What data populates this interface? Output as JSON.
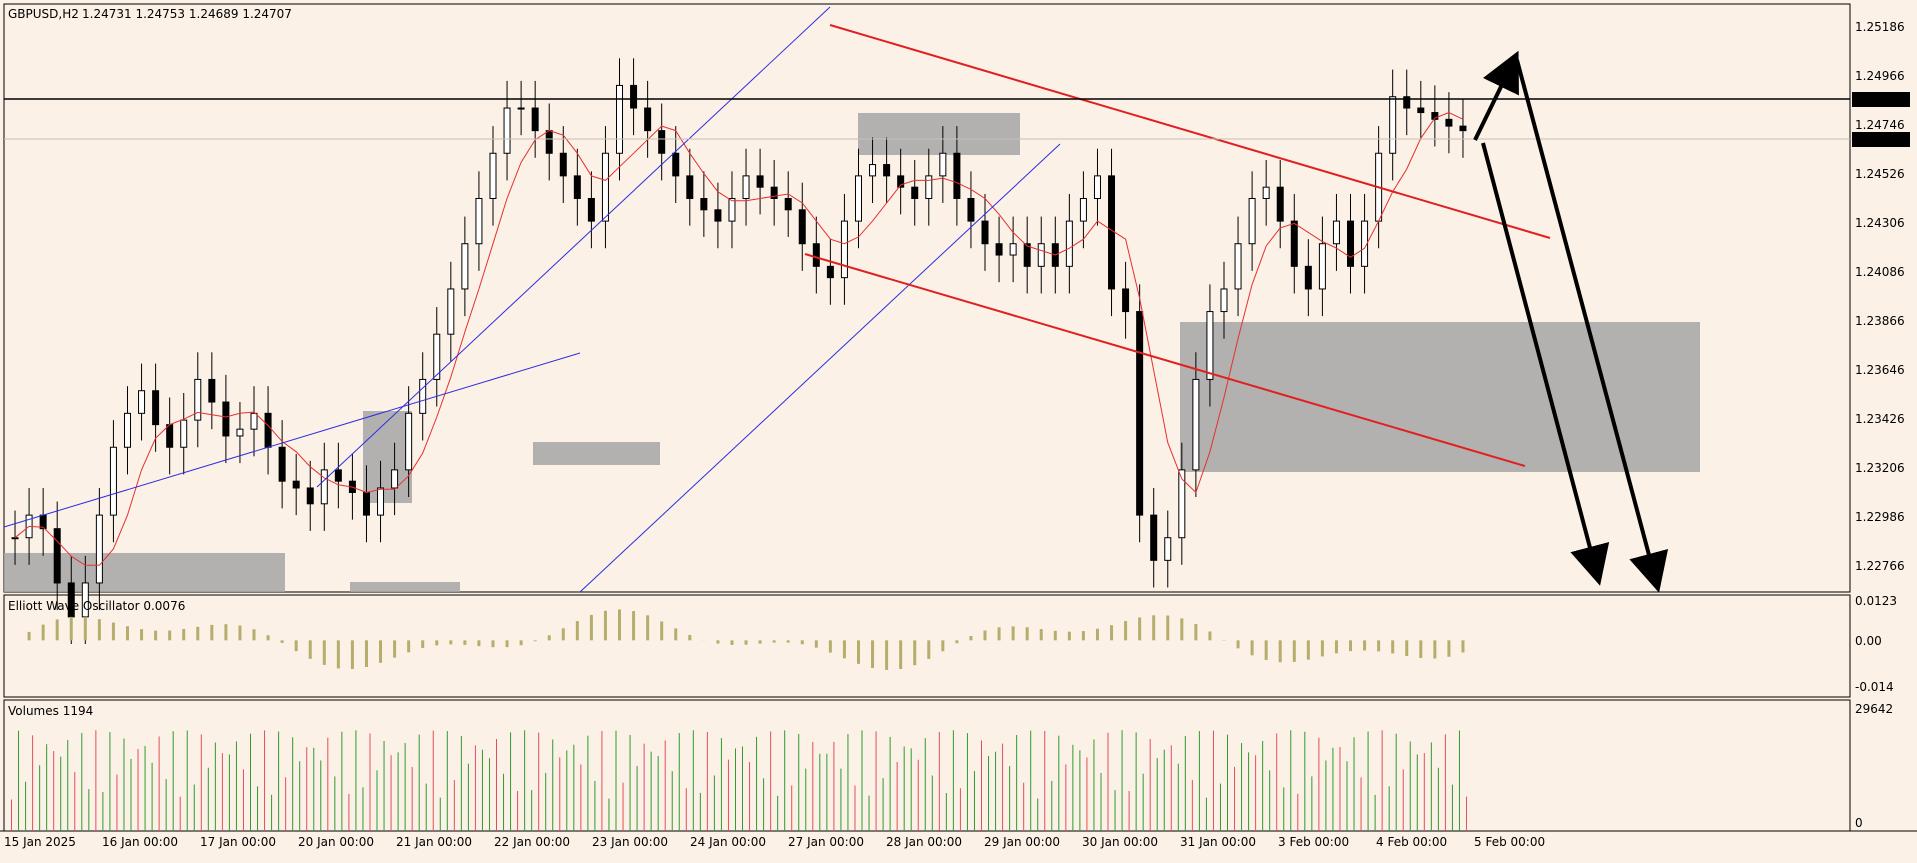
{
  "header": {
    "symbol": "GBPUSD,H2",
    "ohlc": "1.24731 1.24753 1.24689 1.24707"
  },
  "indicators": {
    "oscillator_label": "Elliott Wave Oscillator 0.0076",
    "volume_label": "Volumes 1194"
  },
  "colors": {
    "background": "#fbf1e6",
    "candle": "#000000",
    "ma_line": "#e53030",
    "channel_red": "#e02020",
    "trend_blue": "#2d2de0",
    "zone_gray": "#a6a6a6",
    "osc_bar": "#b5ad6c",
    "vol_up": "#2f9a2f",
    "vol_down": "#e0505a",
    "current_price_tag": "#000000"
  },
  "chart_data": {
    "type": "candlestick",
    "price_axis": {
      "labels": [
        "1.25186",
        "1.24966",
        "1.24746",
        "1.24526",
        "1.24306",
        "1.24086",
        "1.23866",
        "1.23646",
        "1.23426",
        "1.23206",
        "1.22986",
        "1.22766"
      ],
      "range": [
        1.2266,
        1.2526
      ]
    },
    "price_tags": {
      "horizontal_level": "1.24881",
      "current_price": "1.24707"
    },
    "oscillator_axis": {
      "labels": [
        "0.0123",
        "0.00",
        "-0.014"
      ],
      "range": [
        -0.0165,
        0.0132
      ]
    },
    "volume_axis": {
      "labels": [
        "29642",
        "0"
      ],
      "range": [
        0,
        29642
      ]
    },
    "time_labels": [
      "15 Jan 2025",
      "16 Jan 00:00",
      "17 Jan 00:00",
      "20 Jan 00:00",
      "21 Jan 00:00",
      "22 Jan 00:00",
      "23 Jan 00:00",
      "24 Jan 00:00",
      "27 Jan 00:00",
      "28 Jan 00:00",
      "29 Jan 00:00",
      "30 Jan 00:00",
      "31 Jan 00:00",
      "3 Feb 00:00",
      "4 Feb 00:00",
      "5 Feb 00:00"
    ],
    "candles_close": [
      1.229,
      1.23,
      1.2294,
      1.227,
      1.2255,
      1.227,
      1.23,
      1.233,
      1.2345,
      1.2355,
      1.234,
      1.233,
      1.2342,
      1.236,
      1.235,
      1.2335,
      1.2338,
      1.2345,
      1.233,
      1.2315,
      1.2312,
      1.2305,
      1.232,
      1.2315,
      1.231,
      1.23,
      1.2312,
      1.232,
      1.2345,
      1.236,
      1.238,
      1.24,
      1.242,
      1.244,
      1.246,
      1.248,
      1.248,
      1.247,
      1.246,
      1.245,
      1.244,
      1.243,
      1.246,
      1.249,
      1.248,
      1.247,
      1.246,
      1.245,
      1.244,
      1.2435,
      1.243,
      1.244,
      1.245,
      1.2445,
      1.244,
      1.2435,
      1.242,
      1.241,
      1.2405,
      1.243,
      1.245,
      1.2455,
      1.245,
      1.2445,
      1.244,
      1.245,
      1.246,
      1.244,
      1.243,
      1.242,
      1.2415,
      1.242,
      1.241,
      1.242,
      1.241,
      1.243,
      1.244,
      1.245,
      1.24,
      1.239,
      1.23,
      1.228,
      1.229,
      1.232,
      1.236,
      1.239,
      1.24,
      1.242,
      1.244,
      1.2445,
      1.243,
      1.241,
      1.24,
      1.242,
      1.243,
      1.241,
      1.243,
      1.246,
      1.2485,
      1.248,
      1.2478,
      1.2475,
      1.2472,
      1.247
    ],
    "levels_drawn": {
      "horizontal": 1.24881
    },
    "projection": "down"
  }
}
